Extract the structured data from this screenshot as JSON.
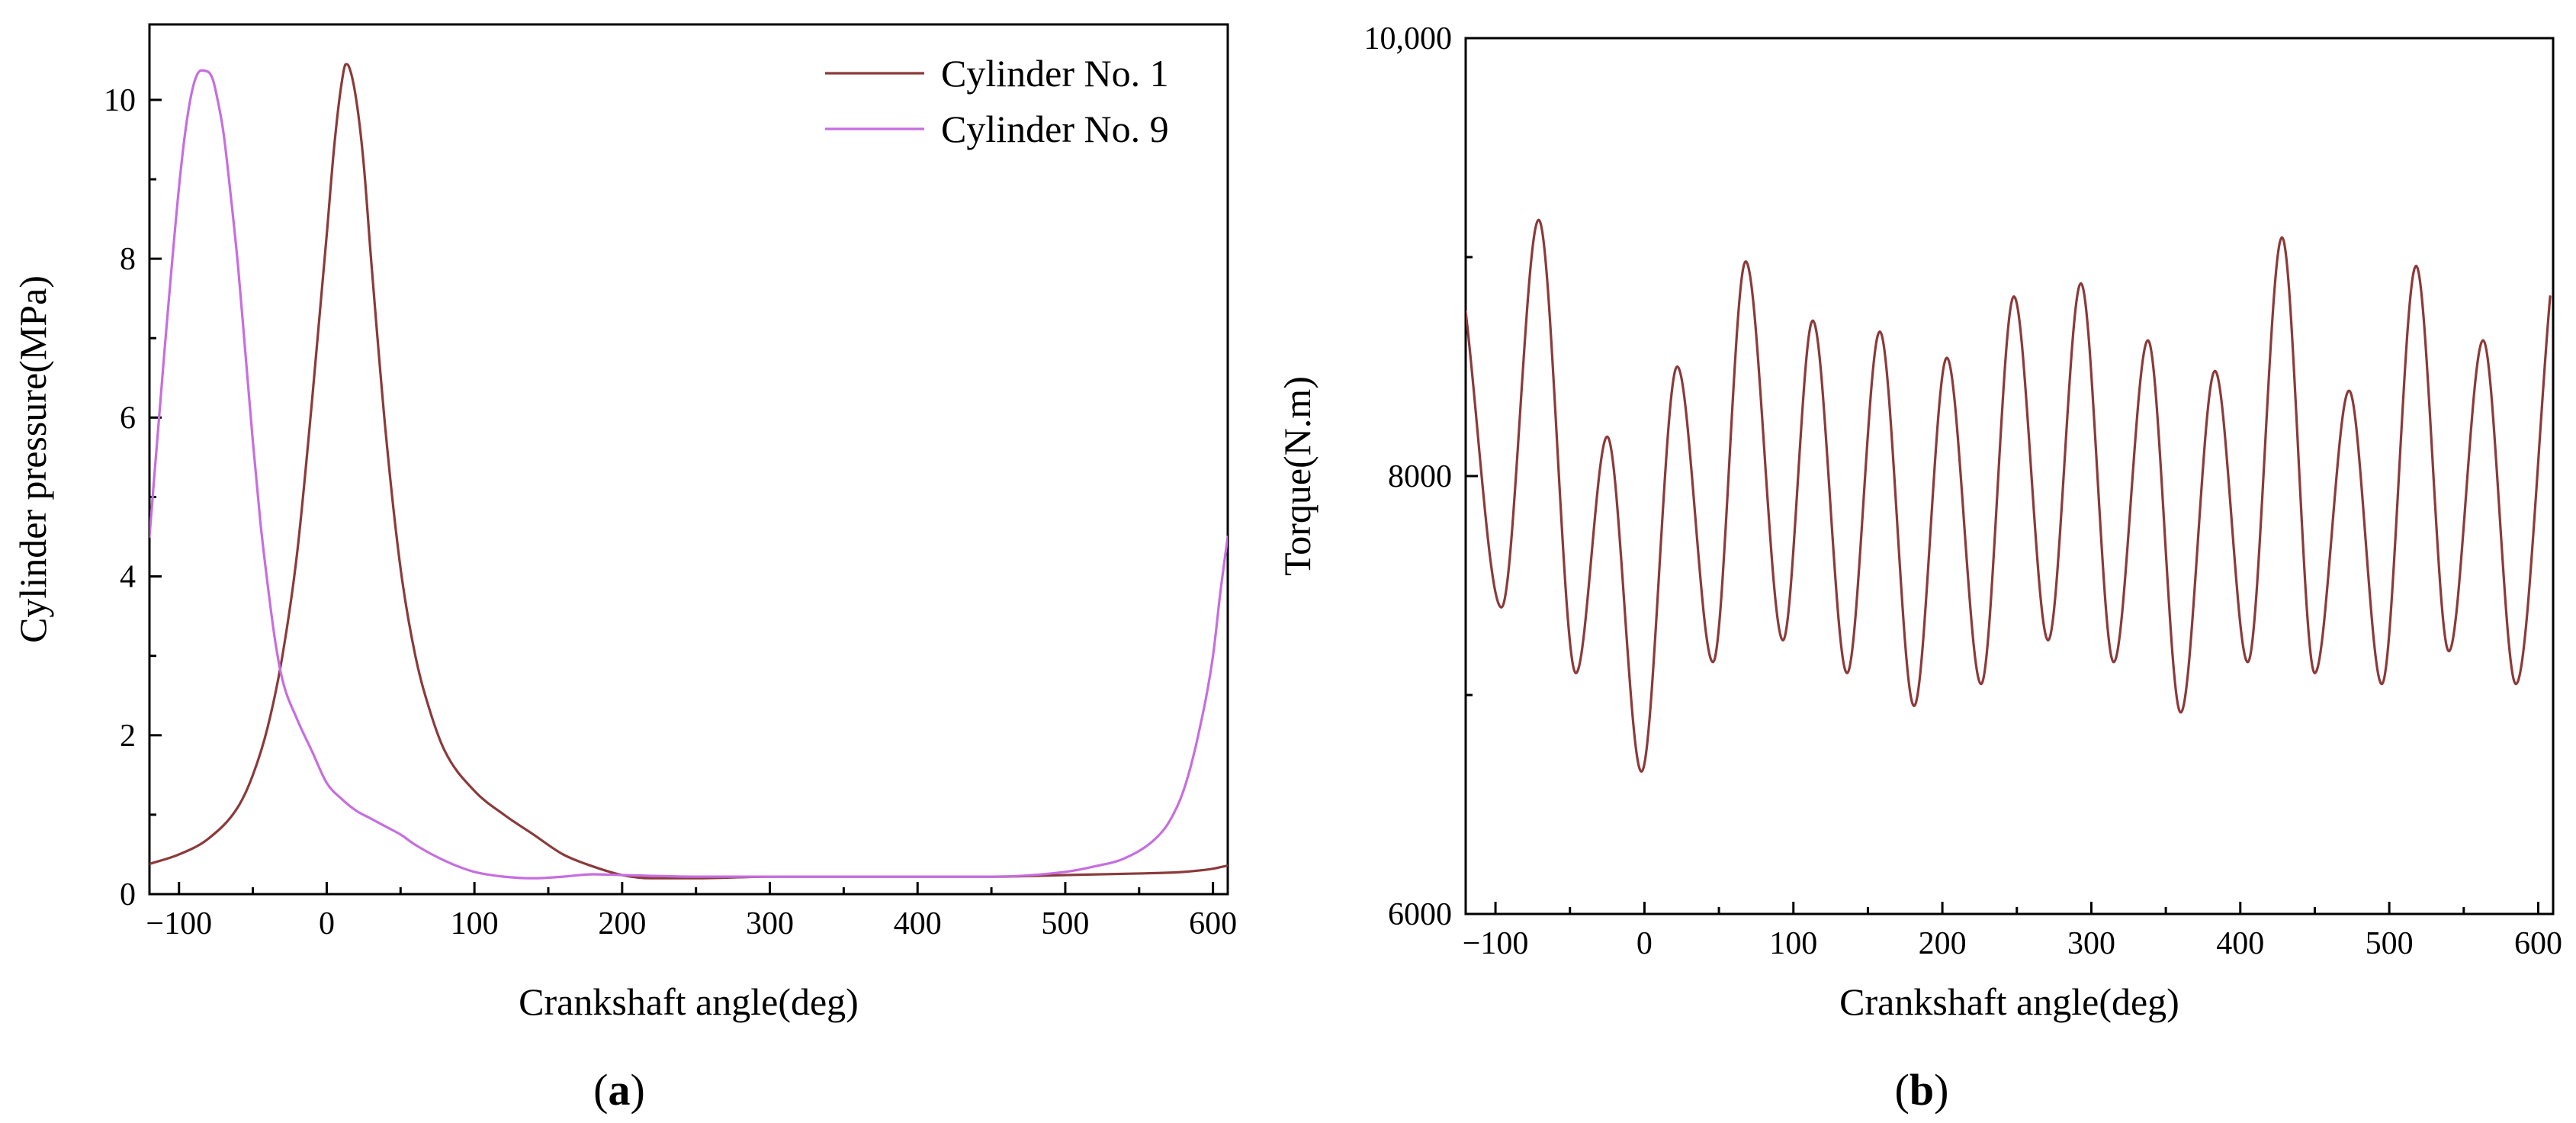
{
  "chart_data": [
    {
      "panel": "a",
      "panel_label": "a",
      "type": "line",
      "xlabel": "Crankshaft angle(deg)",
      "ylabel": "Cylinder pressure(MPa)",
      "xlim": [
        -120,
        610
      ],
      "ylim": [
        0,
        10.95
      ],
      "xticks": [
        -100,
        0,
        100,
        200,
        300,
        400,
        500,
        600
      ],
      "xtick_labels": [
        "−100",
        "0",
        "100",
        "200",
        "300",
        "400",
        "500",
        "600"
      ],
      "yticks": [
        0,
        2,
        4,
        6,
        8,
        10
      ],
      "ytick_labels": [
        "0",
        "2",
        "4",
        "6",
        "8",
        "10"
      ],
      "legend_position": "top-right",
      "series": [
        {
          "name": "Cylinder No. 1",
          "color": "#8b3a3a",
          "x": [
            -120,
            -100,
            -80,
            -60,
            -50,
            -40,
            -30,
            -20,
            -10,
            0,
            5,
            10,
            13,
            15,
            20,
            25,
            30,
            40,
            50,
            60,
            70,
            80,
            100,
            120,
            140,
            160,
            180,
            200,
            220,
            250,
            300,
            350,
            400,
            450,
            500,
            550,
            580,
            600,
            610
          ],
          "y": [
            0.38,
            0.5,
            0.7,
            1.1,
            1.5,
            2.1,
            3.0,
            4.3,
            6.2,
            8.3,
            9.4,
            10.2,
            10.45,
            10.42,
            10.0,
            9.2,
            8.0,
            5.8,
            4.1,
            3.0,
            2.3,
            1.8,
            1.3,
            1.0,
            0.75,
            0.5,
            0.35,
            0.24,
            0.2,
            0.2,
            0.22,
            0.22,
            0.22,
            0.22,
            0.24,
            0.26,
            0.28,
            0.32,
            0.36
          ]
        },
        {
          "name": "Cylinder No. 9",
          "color": "#c66ee0",
          "x": [
            -120,
            -110,
            -100,
            -95,
            -90,
            -85,
            -80,
            -77,
            -75,
            -70,
            -65,
            -60,
            -55,
            -50,
            -45,
            -40,
            -35,
            -30,
            -20,
            -10,
            0,
            10,
            20,
            30,
            40,
            50,
            60,
            80,
            100,
            120,
            140,
            160,
            180,
            200,
            250,
            300,
            350,
            400,
            450,
            500,
            520,
            540,
            560,
            570,
            580,
            590,
            600,
            605,
            610
          ],
          "y": [
            4.5,
            6.8,
            8.9,
            9.7,
            10.2,
            10.37,
            10.35,
            10.25,
            10.1,
            9.6,
            8.8,
            7.9,
            6.8,
            5.7,
            4.7,
            3.9,
            3.2,
            2.7,
            2.2,
            1.8,
            1.4,
            1.2,
            1.05,
            0.95,
            0.85,
            0.75,
            0.62,
            0.42,
            0.28,
            0.22,
            0.2,
            0.22,
            0.25,
            0.24,
            0.22,
            0.22,
            0.22,
            0.22,
            0.22,
            0.28,
            0.35,
            0.45,
            0.68,
            0.9,
            1.3,
            2.0,
            3.0,
            3.8,
            4.5
          ]
        }
      ]
    },
    {
      "panel": "b",
      "panel_label": "b",
      "type": "line",
      "xlabel": "Crankshaft angle(deg)",
      "ylabel": "Torque(N.m)",
      "xlim": [
        -120,
        610
      ],
      "ylim": [
        6000,
        10000
      ],
      "xticks": [
        -100,
        0,
        100,
        200,
        300,
        400,
        500,
        600
      ],
      "xtick_labels": [
        "−100",
        "0",
        "100",
        "200",
        "300",
        "400",
        "500",
        "600"
      ],
      "yticks": [
        6000,
        8000,
        10000
      ],
      "ytick_labels": [
        "6000",
        "8000",
        "10,000"
      ],
      "yminor_ticks": [
        7000,
        9000
      ],
      "series": [
        {
          "name": "Torque",
          "color": "#8b3a3a",
          "x": [
            -120,
            -96,
            -71,
            -46,
            -25,
            -2,
            22,
            46,
            68,
            93,
            113,
            136,
            158,
            181,
            203,
            226,
            248,
            271,
            293,
            315,
            338,
            360,
            383,
            405,
            428,
            450,
            473,
            495,
            518,
            540,
            563,
            585,
            608
          ],
          "y": [
            8750,
            7400,
            9170,
            7100,
            8180,
            6650,
            8500,
            7150,
            8980,
            7250,
            8710,
            7100,
            8660,
            6950,
            8540,
            7050,
            8820,
            7250,
            8880,
            7150,
            8620,
            6920,
            8480,
            7150,
            9090,
            7100,
            8390,
            7050,
            8960,
            7200,
            8620,
            7050,
            8820
          ]
        }
      ]
    }
  ]
}
